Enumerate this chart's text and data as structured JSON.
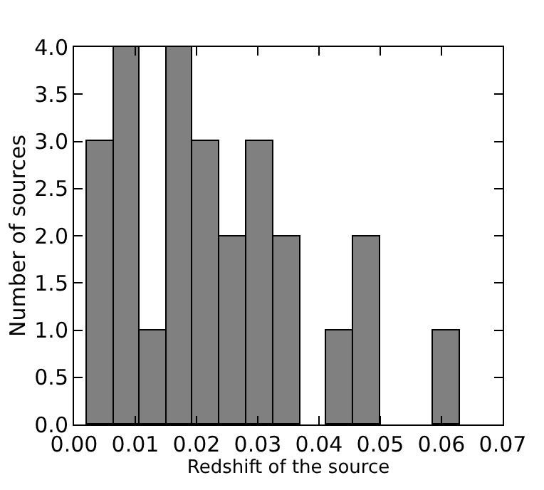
{
  "chart_data": {
    "type": "histogram",
    "xlabel": "Redshift of the source",
    "ylabel": "Number of sources",
    "bins": [
      0.002,
      0.0064,
      0.0107,
      0.0151,
      0.0194,
      0.0238,
      0.0281,
      0.0325,
      0.0369,
      0.0412,
      0.0456,
      0.0499,
      0.0586,
      0.063
    ],
    "values": [
      3,
      4,
      1,
      4,
      3,
      2,
      3,
      2,
      0,
      1,
      2,
      0,
      1
    ],
    "color": "#808080",
    "xlim": [
      0.0,
      0.07
    ],
    "xticks": [
      {
        "value": 0.0,
        "label": "0.00"
      },
      0.01,
      0.02,
      0.03,
      0.04,
      0.05,
      0.06,
      0.07
    ],
    "ylim": [
      0.0,
      4.0
    ],
    "yticks": [
      {
        "value": 0.0,
        "label": "0.0"
      },
      0.5,
      {
        "value": 1.0,
        "label": "1.0"
      },
      1.5,
      {
        "value": 2.0,
        "label": "2.0"
      },
      2.5,
      {
        "value": 3.0,
        "label": "3.0"
      },
      3.5,
      {
        "value": 4.0,
        "label": "4.0"
      }
    ]
  }
}
